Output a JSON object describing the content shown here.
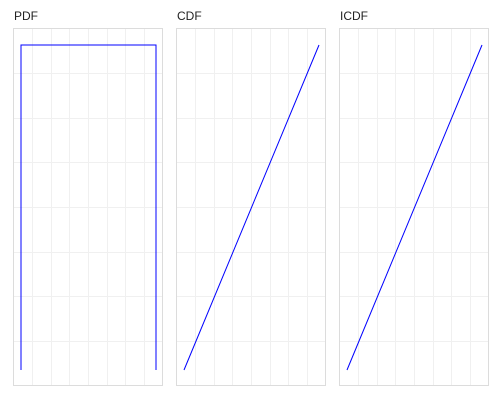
{
  "chart_data": [
    {
      "type": "line",
      "title": "PDF",
      "xlabel": "",
      "ylabel": "",
      "grid": true,
      "legend": "none",
      "xlim": [
        0,
        1
      ],
      "ylim": [
        0,
        1
      ],
      "series": [
        {
          "color": "#0000ff",
          "x": [
            0,
            0,
            1,
            1
          ],
          "y": [
            0,
            1,
            1,
            0
          ]
        }
      ]
    },
    {
      "type": "line",
      "title": "CDF",
      "xlabel": "",
      "ylabel": "",
      "grid": true,
      "legend": "none",
      "xlim": [
        0,
        1
      ],
      "ylim": [
        0,
        1
      ],
      "series": [
        {
          "color": "#0000ff",
          "x": [
            0,
            1
          ],
          "y": [
            0,
            1
          ]
        }
      ]
    },
    {
      "type": "line",
      "title": "ICDF",
      "xlabel": "",
      "ylabel": "",
      "grid": true,
      "legend": "none",
      "xlim": [
        0,
        1
      ],
      "ylim": [
        0,
        1
      ],
      "series": [
        {
          "color": "#0000ff",
          "x": [
            0,
            1
          ],
          "y": [
            0,
            1
          ]
        }
      ]
    }
  ]
}
